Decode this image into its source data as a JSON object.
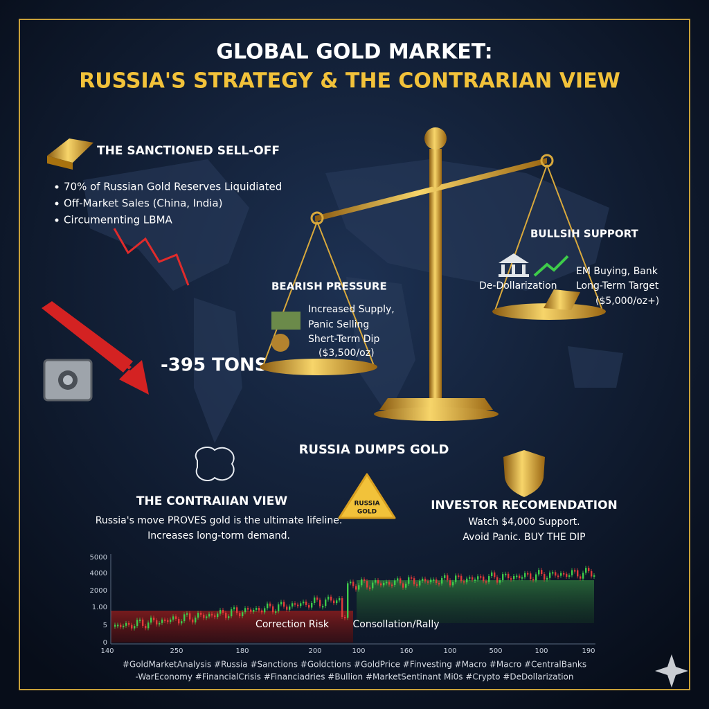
{
  "header": {
    "title_line1": "GLOBAL GOLD MARKET:",
    "title_line2": "RUSSIA'S STRATEGY & THE CONTRARIAN VIEW"
  },
  "selloff": {
    "heading": "THE SANCTIONED SELL-OFF",
    "bullets": [
      "70% of Russian Gold Reserves Liquidiated",
      "Off-Market Sales (China, India)",
      "Circumennting LBMA"
    ],
    "tons": "-395 TONS"
  },
  "bearish": {
    "heading": "BEARISH PRESSURE",
    "lines": [
      "Increased Supply,",
      "Panic Selling",
      "Shert-Term Dip",
      "($3,500/oz)"
    ]
  },
  "bullish": {
    "heading": "BULLSIH SUPPORT",
    "lines": [
      "EM Buying, Bank",
      "De-Dollarization",
      "Long-Term Target",
      "($5,000/oz+)"
    ]
  },
  "center": {
    "heading": "RUSSIA DUMPS GOLD",
    "sign": [
      "RUSSIA",
      "GOLD"
    ]
  },
  "contrarian": {
    "heading": "THE CONTRAIIAN VIEW",
    "lines": [
      "Russia's move PROVES gold is the ultimate lifeline.",
      "Increases long-torm demand."
    ]
  },
  "recommendation": {
    "heading": "INVESTOR RECOMENDATION",
    "lines": [
      "Watch $4,000 Support.",
      "Avoid Panic. BUY THE DIP"
    ]
  },
  "price_chart": {
    "y_labels": [
      "5000",
      "4000",
      "2000",
      "1.00",
      "5",
      "0"
    ],
    "x_labels": [
      "140",
      "250",
      "180",
      "200",
      "100",
      "160",
      "100",
      "500",
      "100",
      "190"
    ],
    "zones": [
      "Correction Risk",
      "Consollation/Rally"
    ]
  },
  "hashtags": [
    "#GoldMarketAnalysis #Russia #Sanctions #Goldctions #GoldPrice #Finvesting #Macro #Macro #CentralBanks",
    "-WarEconomy #FinancialCrisis #Financiadries #Bullion #MarketSentinant Mi0s #Crypto #DeDollarization"
  ]
}
